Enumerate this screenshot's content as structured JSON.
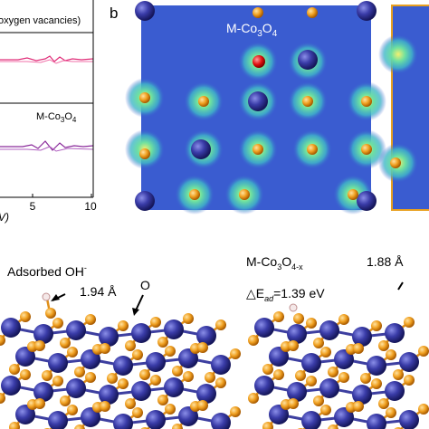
{
  "panel_a": {
    "legend_top": "oxygen vacancies)",
    "legend_bottom": [
      "M-Co",
      "3",
      "O",
      "4"
    ],
    "x_tick_labels": [
      "5",
      "10"
    ],
    "x_axis_label": "V)"
  },
  "panel_b": {
    "label": "b",
    "title": [
      "M-Co",
      "3",
      "O",
      "4"
    ]
  },
  "panel_c": {
    "left": {
      "title": "Adsorbed OH",
      "title_sup": "-",
      "distance": "1.94 Å",
      "atom_label": "O"
    },
    "right": {
      "title": [
        "M-Co",
        "3",
        "O",
        "4-x"
      ],
      "distance": "1.88 Å",
      "energy": [
        "△E",
        "ad",
        "=1.39 eV"
      ]
    }
  }
}
